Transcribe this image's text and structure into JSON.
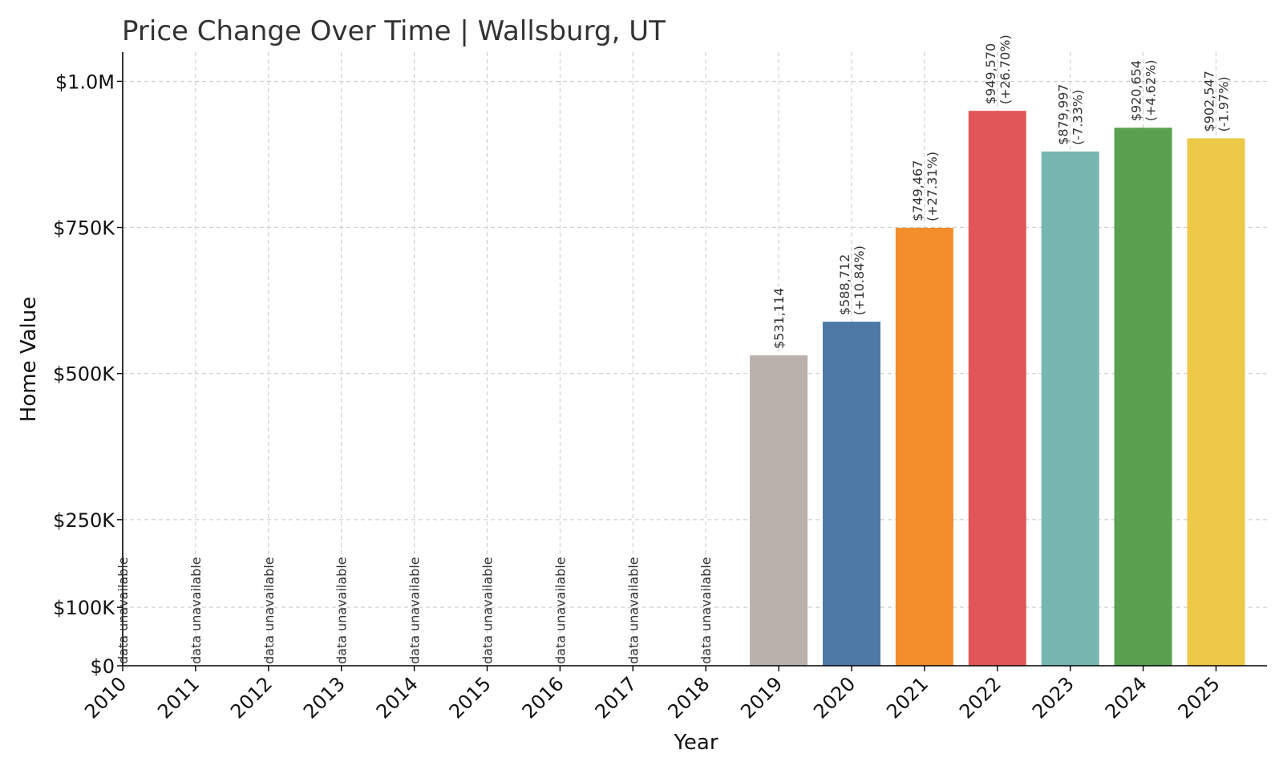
{
  "chart_data": {
    "type": "bar",
    "title": "Price Change Over Time | Wallsburg, UT",
    "xlabel": "Year",
    "ylabel": "Home Value",
    "categories": [
      "2010",
      "2011",
      "2012",
      "2013",
      "2014",
      "2015",
      "2016",
      "2017",
      "2018",
      "2019",
      "2020",
      "2021",
      "2022",
      "2023",
      "2024",
      "2025"
    ],
    "values": [
      null,
      null,
      null,
      null,
      null,
      null,
      null,
      null,
      null,
      531114,
      588712,
      749467,
      949570,
      879997,
      920654,
      902547
    ],
    "value_labels": [
      "",
      "",
      "",
      "",
      "",
      "",
      "",
      "",
      "",
      "$531,114",
      "$588,712",
      "$749,467",
      "$949,570",
      "$879,997",
      "$920,654",
      "$902,547"
    ],
    "change_labels": [
      "",
      "",
      "",
      "",
      "",
      "",
      "",
      "",
      "",
      "",
      "(+10.84%)",
      "(+27.31%)",
      "(+26.70%)",
      "(-7.33%)",
      "(+4.62%)",
      "(-1.97%)"
    ],
    "unavailable_label": "data unavailable",
    "colors": [
      "#bab0ac",
      "#bab0ac",
      "#bab0ac",
      "#bab0ac",
      "#bab0ac",
      "#bab0ac",
      "#bab0ac",
      "#bab0ac",
      "#bab0ac",
      "#bab0ac",
      "#4e79a7",
      "#f28e2b",
      "#e15759",
      "#76b7b2",
      "#59a14f",
      "#edc948"
    ],
    "y_ticks": [
      0,
      100000,
      250000,
      500000,
      750000,
      1000000
    ],
    "y_tick_labels": [
      "$0",
      "$100K",
      "$250K",
      "$500K",
      "$750K",
      "$1.0M"
    ],
    "ylim": [
      0,
      1050000
    ],
    "grid": true,
    "legend": "none"
  }
}
